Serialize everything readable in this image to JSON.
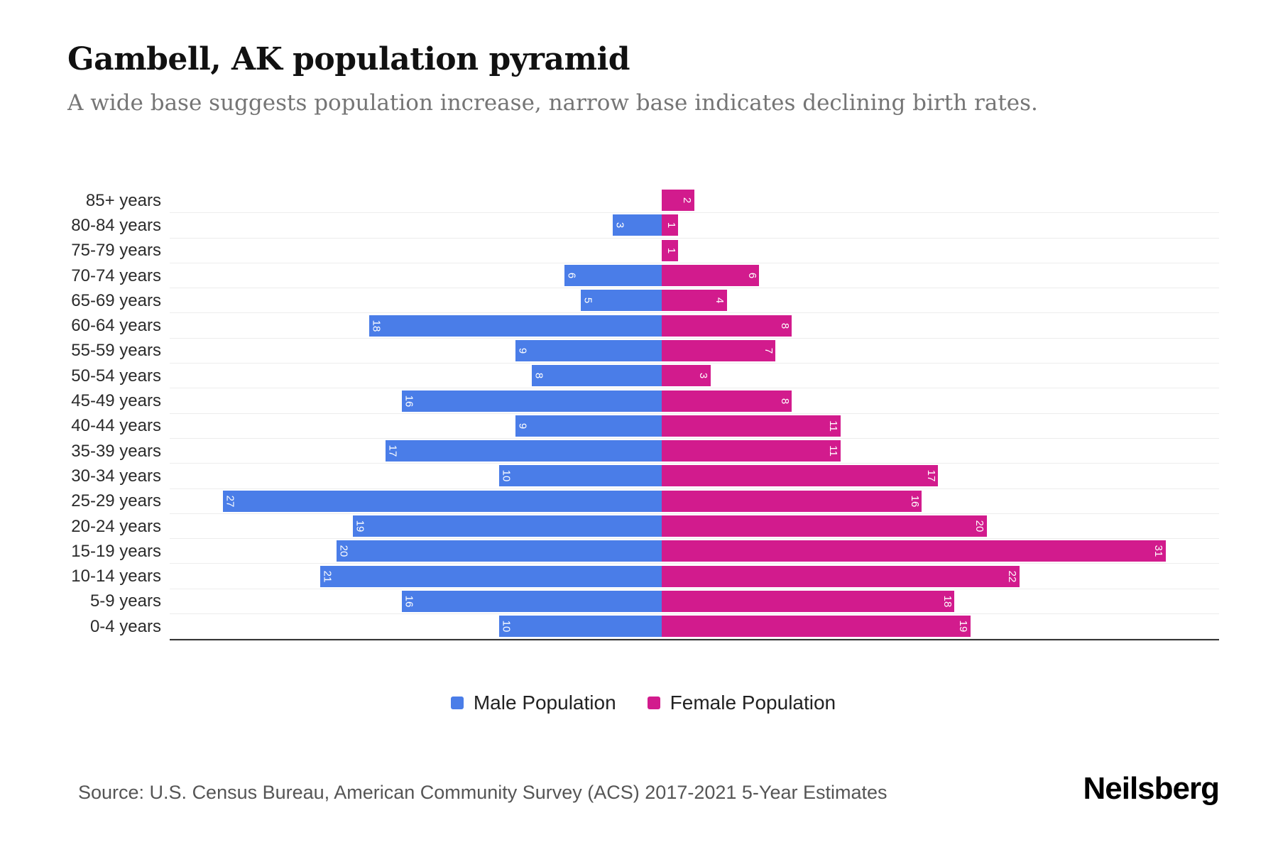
{
  "header": {
    "title": "Gambell, AK population pyramid",
    "subtitle": "A wide base suggests population increase, narrow base indicates declining birth rates."
  },
  "chart_data": {
    "type": "bar",
    "variant": "population-pyramid",
    "title": "Gambell, AK population pyramid",
    "categories": [
      "85+ years",
      "80-84 years",
      "75-79 years",
      "70-74 years",
      "65-69 years",
      "60-64 years",
      "55-59 years",
      "50-54 years",
      "45-49 years",
      "40-44 years",
      "35-39 years",
      "30-34 years",
      "25-29 years",
      "20-24 years",
      "15-19 years",
      "10-14 years",
      "5-9 years",
      "0-4 years"
    ],
    "series": [
      {
        "name": "Male Population",
        "color": "#4a7de8",
        "direction": "left",
        "values": [
          0,
          3,
          0,
          6,
          5,
          18,
          9,
          8,
          16,
          9,
          17,
          10,
          27,
          19,
          20,
          21,
          16,
          10
        ]
      },
      {
        "name": "Female Population",
        "color": "#d21b8d",
        "direction": "right",
        "values": [
          2,
          1,
          1,
          6,
          4,
          8,
          7,
          3,
          8,
          11,
          11,
          17,
          16,
          20,
          31,
          22,
          18,
          19
        ]
      }
    ],
    "value_labels": "inside-end, rotated 90deg, white",
    "xlim": [
      -31,
      31
    ],
    "grid": "horizontal",
    "legend_position": "bottom"
  },
  "footer": {
    "source": "Source: U.S. Census Bureau, American Community Survey (ACS) 2017-2021 5-Year Estimates",
    "brand": "Neilsberg"
  }
}
